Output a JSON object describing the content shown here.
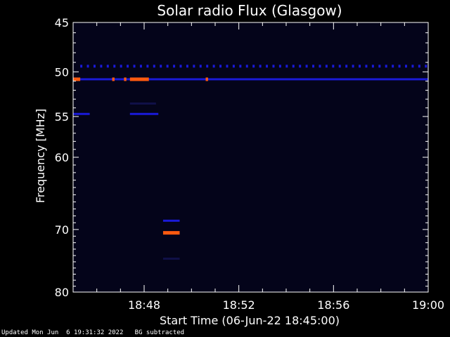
{
  "chart_data": {
    "type": "heatmap",
    "title": "Solar radio Flux (Glasgow)",
    "xlabel": "Start Time (06-Jun-22 18:45:00)",
    "ylabel": "Frequency [MHz]",
    "x_ticks": [
      "18:48",
      "18:52",
      "18:56",
      "19:00"
    ],
    "x_tick_minutes": [
      3,
      7,
      11,
      15
    ],
    "xlim_minutes": [
      0,
      15
    ],
    "y_ticks": [
      45,
      50,
      55,
      60,
      70,
      80
    ],
    "ylim": [
      45,
      80
    ],
    "y_scale": "log",
    "background_color": "#04041a",
    "colors": {
      "strong": "#ff5a10",
      "medium": "#1a1ad8",
      "faint": "#101048"
    },
    "features": [
      {
        "kind": "periodic",
        "freq": 49.4,
        "t_start": 0.3,
        "t_end": 15,
        "period": 0.28,
        "color": "medium"
      },
      {
        "kind": "band",
        "freq": 50.8,
        "t_start": 0,
        "t_end": 15,
        "color": "medium"
      },
      {
        "kind": "burst",
        "freq": 50.8,
        "t_start": 0,
        "t_end": 0.3,
        "color": "strong"
      },
      {
        "kind": "burst",
        "freq": 50.8,
        "t_start": 2.4,
        "t_end": 3.2,
        "color": "strong"
      },
      {
        "kind": "burst",
        "freq": 50.8,
        "t_start": 1.65,
        "t_end": 1.75,
        "color": "strong"
      },
      {
        "kind": "burst",
        "freq": 50.8,
        "t_start": 2.15,
        "t_end": 2.25,
        "color": "strong"
      },
      {
        "kind": "burst",
        "freq": 50.8,
        "t_start": 5.6,
        "t_end": 5.7,
        "color": "strong"
      },
      {
        "kind": "band",
        "freq": 54.7,
        "t_start": 0,
        "t_end": 0.7,
        "color": "medium"
      },
      {
        "kind": "band",
        "freq": 54.7,
        "t_start": 2.4,
        "t_end": 3.6,
        "color": "medium"
      },
      {
        "kind": "band",
        "freq": 53.5,
        "t_start": 2.4,
        "t_end": 3.5,
        "color": "faint"
      },
      {
        "kind": "band",
        "freq": 68.7,
        "t_start": 3.8,
        "t_end": 4.5,
        "color": "medium"
      },
      {
        "kind": "burst",
        "freq": 70.5,
        "t_start": 3.8,
        "t_end": 4.5,
        "color": "strong"
      },
      {
        "kind": "band",
        "freq": 74.5,
        "t_start": 3.8,
        "t_end": 4.5,
        "color": "faint"
      }
    ]
  },
  "footer": {
    "updated": "Updated Mon Jun  6 19:31:32 2022",
    "note": "BG subtracted"
  }
}
